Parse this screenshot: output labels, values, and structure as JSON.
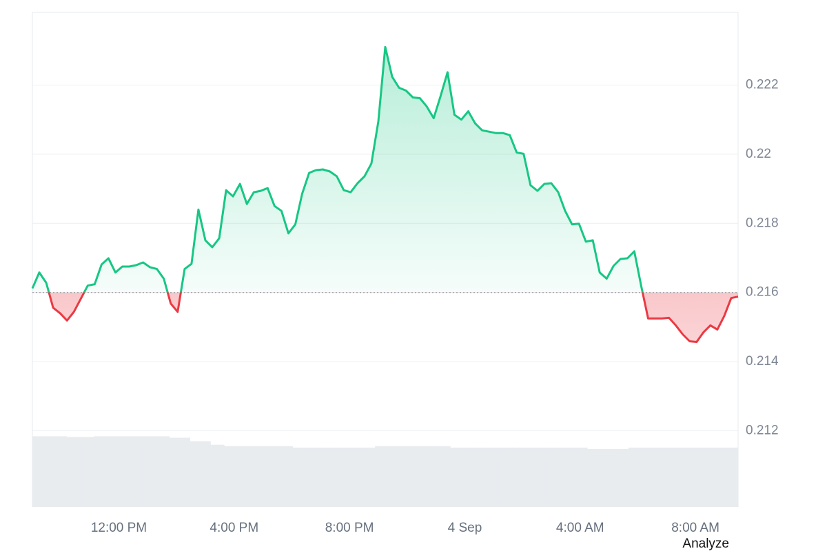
{
  "chart_data": {
    "type": "baseline-line",
    "x": [
      9,
      9.24,
      9.48,
      9.72,
      9.96,
      10.2,
      10.44,
      10.68,
      10.92,
      11.16,
      11.4,
      11.64,
      11.88,
      12.12,
      12.36,
      12.6,
      12.84,
      13.08,
      13.32,
      13.56,
      13.8,
      14.04,
      14.28,
      14.52,
      14.76,
      15,
      15.24,
      15.48,
      15.72,
      15.96,
      16.2,
      16.44,
      16.68,
      16.92,
      17.16,
      17.4,
      17.64,
      17.88,
      18.12,
      18.36,
      18.6,
      18.84,
      19.08,
      19.32,
      19.56,
      19.8,
      20.04,
      20.28,
      20.52,
      20.76,
      21,
      21.24,
      21.48,
      21.72,
      21.96,
      22.2,
      22.44,
      22.68,
      22.92,
      23.16,
      23.4,
      23.64,
      23.88,
      24.12,
      24.36,
      24.6,
      24.84,
      25.08,
      25.32,
      25.56,
      25.8,
      26.04,
      26.28,
      26.52,
      26.76,
      27,
      27.24,
      27.48,
      27.72,
      27.96,
      28.2,
      28.44,
      28.68,
      28.92,
      29.16,
      29.4,
      29.64,
      29.88,
      30.12,
      30.36,
      30.6,
      30.84,
      31.08,
      31.32,
      31.56,
      31.8,
      32.04,
      32.28,
      32.52,
      32.76,
      33,
      33.24,
      33.48
    ],
    "values": [
      0.21612,
      0.21658,
      0.21628,
      0.21556,
      0.2154,
      0.21519,
      0.21544,
      0.21582,
      0.2162,
      0.21624,
      0.21681,
      0.21699,
      0.21658,
      0.21675,
      0.21675,
      0.21679,
      0.21687,
      0.21673,
      0.21668,
      0.2164,
      0.21568,
      0.21544,
      0.21668,
      0.21683,
      0.2184,
      0.21751,
      0.21731,
      0.21757,
      0.21896,
      0.21878,
      0.21914,
      0.21856,
      0.2189,
      0.21894,
      0.21902,
      0.2185,
      0.21836,
      0.21771,
      0.21797,
      0.21886,
      0.21946,
      0.21954,
      0.21956,
      0.2195,
      0.21936,
      0.21896,
      0.2189,
      0.21916,
      0.21936,
      0.21973,
      0.22095,
      0.2231,
      0.22224,
      0.22192,
      0.22184,
      0.22164,
      0.22162,
      0.22138,
      0.22104,
      0.22168,
      0.22237,
      0.22114,
      0.221,
      0.22124,
      0.22089,
      0.22069,
      0.22065,
      0.22061,
      0.22061,
      0.22055,
      0.22005,
      0.22001,
      0.2191,
      0.21894,
      0.21914,
      0.21916,
      0.2189,
      0.21836,
      0.21797,
      0.21799,
      0.21747,
      0.21751,
      0.21658,
      0.2164,
      0.21677,
      0.21697,
      0.21699,
      0.21719,
      0.21618,
      0.21525,
      0.21525,
      0.21525,
      0.21527,
      0.21505,
      0.21479,
      0.21459,
      0.21457,
      0.21485,
      0.21505,
      0.21493,
      0.21532,
      0.21584,
      0.21588
    ],
    "volume": {
      "values": [
        100,
        100,
        100,
        100,
        100,
        99,
        99,
        99,
        99,
        100,
        100,
        100,
        100,
        100,
        100,
        100,
        100,
        100,
        100,
        100,
        98,
        98,
        98,
        93,
        93,
        93,
        88,
        88,
        86,
        86,
        86,
        86,
        86,
        86,
        86,
        86,
        86,
        86,
        84,
        84,
        84,
        84,
        84,
        84,
        84,
        84,
        84,
        84,
        84,
        84,
        86,
        86,
        86,
        86,
        86,
        86,
        86,
        86,
        86,
        86,
        86,
        84,
        84,
        84,
        84,
        84,
        84,
        84,
        84,
        84,
        84,
        84,
        84,
        84,
        84,
        84,
        84,
        84,
        84,
        84,
        84,
        82,
        82,
        82,
        82,
        82,
        82,
        84,
        84,
        84,
        84,
        84,
        84,
        84,
        84,
        84,
        84,
        84,
        84,
        84,
        84,
        84,
        84
      ],
      "ylim": [
        0,
        700
      ],
      "color": "#e8ecef"
    },
    "baseline": 0.216,
    "up_color": "#16c784",
    "down_color": "#ea3943",
    "xlim": [
      9,
      33.48
    ],
    "xticks": [
      {
        "value": 12,
        "label": "12:00 PM"
      },
      {
        "value": 16,
        "label": "4:00 PM"
      },
      {
        "value": 20,
        "label": "8:00 PM"
      },
      {
        "value": 24,
        "label": "4 Sep"
      },
      {
        "value": 28,
        "label": "4:00 AM"
      },
      {
        "value": 32,
        "label": "8:00 AM"
      }
    ],
    "ylim": [
      0.2098,
      0.2241
    ],
    "yticks": [
      0.212,
      0.214,
      0.216,
      0.218,
      0.22,
      0.222
    ],
    "grid": true
  },
  "analyze_button": "Analyze"
}
